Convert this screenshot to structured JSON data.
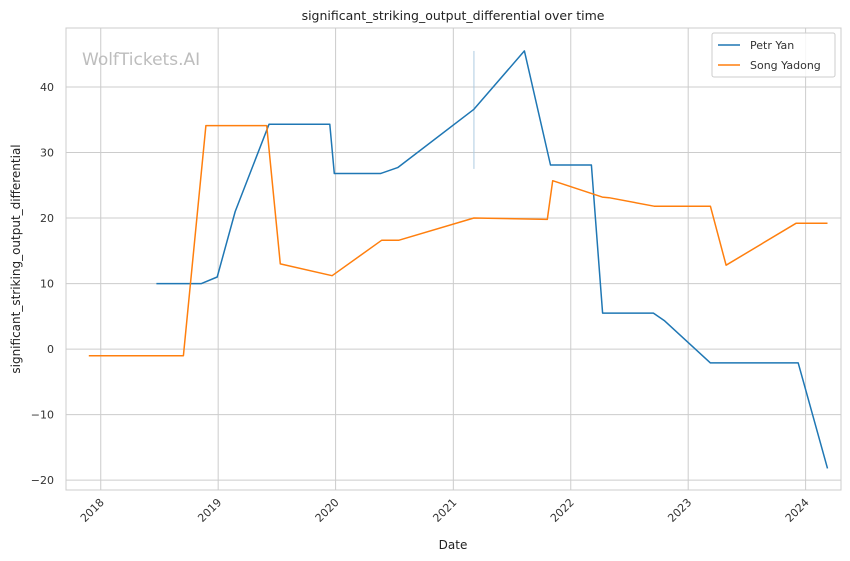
{
  "chart_data": {
    "type": "line",
    "title": "significant_striking_output_differential over time",
    "xlabel": "Date",
    "ylabel": "significant_striking_output_differential",
    "watermark": "WolfTickets.AI",
    "grid": true,
    "legend_position": "top-right",
    "xlim": [
      "2017-09-15",
      "2024-04-20"
    ],
    "ylim": [
      -21.5,
      49
    ],
    "x_ticks": [
      "2018",
      "2019",
      "2020",
      "2021",
      "2022",
      "2023",
      "2024"
    ],
    "y_ticks": [
      -20,
      -10,
      0,
      10,
      20,
      30,
      40
    ],
    "series": [
      {
        "name": "Petr Yan",
        "color": "#1f77b4",
        "points": [
          [
            "2018-06-23",
            10.0
          ],
          [
            "2018-11-10",
            10.0
          ],
          [
            "2018-12-29",
            11.0
          ],
          [
            "2019-02-23",
            21.0
          ],
          [
            "2019-06-08",
            34.3
          ],
          [
            "2019-12-14",
            34.3
          ],
          [
            "2019-12-28",
            26.8
          ],
          [
            "2020-05-20",
            26.8
          ],
          [
            "2020-07-12",
            27.7
          ],
          [
            "2021-03-06",
            36.6
          ],
          [
            "2021-08-10",
            45.5
          ],
          [
            "2021-10-30",
            28.1
          ],
          [
            "2022-03-06",
            28.1
          ],
          [
            "2022-04-10",
            5.5
          ],
          [
            "2022-09-15",
            5.5
          ],
          [
            "2022-10-20",
            4.3
          ],
          [
            "2023-03-11",
            -2.1
          ],
          [
            "2023-12-09",
            -2.1
          ],
          [
            "2024-03-09",
            -18.2
          ]
        ]
      },
      {
        "name": "Song Yadong",
        "color": "#ff7f0e",
        "points": [
          [
            "2017-11-25",
            -1.0
          ],
          [
            "2018-09-15",
            -1.0
          ],
          [
            "2018-11-24",
            34.1
          ],
          [
            "2019-06-01",
            34.1
          ],
          [
            "2019-07-13",
            13.0
          ],
          [
            "2019-12-21",
            11.2
          ],
          [
            "2020-05-23",
            16.6
          ],
          [
            "2020-07-15",
            16.6
          ],
          [
            "2021-03-06",
            20.0
          ],
          [
            "2021-10-20",
            19.8
          ],
          [
            "2021-11-06",
            25.7
          ],
          [
            "2022-04-09",
            23.2
          ],
          [
            "2022-04-30",
            23.1
          ],
          [
            "2022-09-17",
            21.8
          ],
          [
            "2023-03-11",
            21.8
          ],
          [
            "2023-04-29",
            12.8
          ],
          [
            "2023-12-02",
            19.2
          ],
          [
            "2024-03-09",
            19.2
          ]
        ]
      }
    ],
    "annotations": [
      {
        "type": "vertical-segment",
        "x": "2021-03-06",
        "y_from": 27.5,
        "y_to": 45.5,
        "color": "#aecbe0"
      }
    ]
  }
}
